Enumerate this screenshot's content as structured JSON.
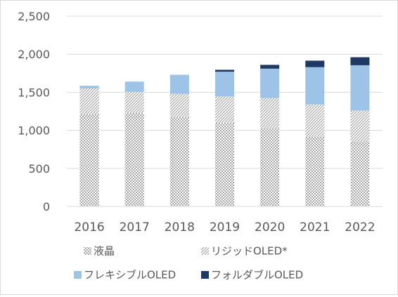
{
  "chart_data": {
    "type": "bar",
    "stacked": true,
    "categories": [
      "2016",
      "2017",
      "2018",
      "2019",
      "2020",
      "2021",
      "2022"
    ],
    "series": [
      {
        "name": "液晶",
        "pattern": "dots",
        "color": "#7f7f7f",
        "values": [
          1205,
          1225,
          1175,
          1100,
          1030,
          920,
          850
        ]
      },
      {
        "name": "リジッドOLED*",
        "pattern": "diagonal",
        "color": "#808080",
        "values": [
          345,
          280,
          305,
          345,
          395,
          420,
          410
        ]
      },
      {
        "name": "フレキシブルOLED",
        "pattern": "solid",
        "color": "#9dc3e6",
        "values": [
          35,
          135,
          250,
          325,
          385,
          490,
          595
        ]
      },
      {
        "name": "フォルダブルOLED",
        "pattern": "solid",
        "color": "#1f3864",
        "values": [
          0,
          0,
          0,
          25,
          50,
          85,
          105
        ]
      }
    ],
    "yticks": [
      "0",
      "500",
      "1,000",
      "1,500",
      "2,000",
      "2,500"
    ],
    "ylim": [
      0,
      2500
    ],
    "grid": true,
    "legend_position": "bottom"
  }
}
